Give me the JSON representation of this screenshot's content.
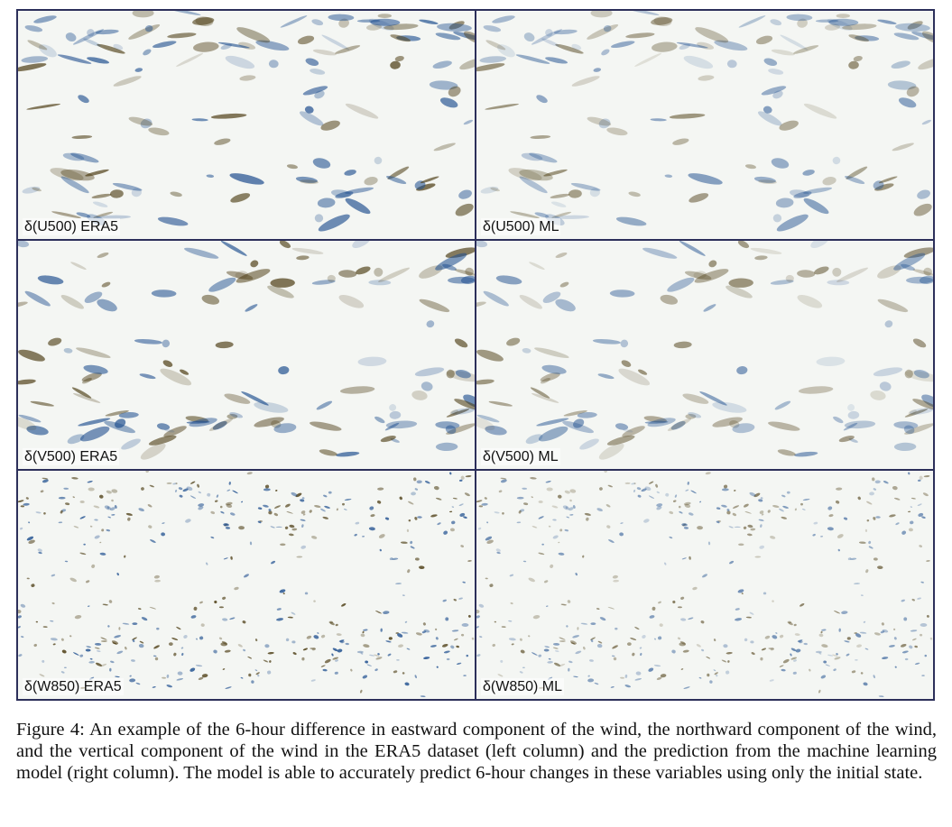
{
  "figure": {
    "panels": [
      {
        "label": "δ(U500) ERA5",
        "variable": "U500",
        "source": "ERA5"
      },
      {
        "label": "δ(U500) ML",
        "variable": "U500",
        "source": "ML"
      },
      {
        "label": "δ(V500) ERA5",
        "variable": "V500",
        "source": "ERA5"
      },
      {
        "label": "δ(V500) ML",
        "variable": "V500",
        "source": "ML"
      },
      {
        "label": "δ(W850) ERA5",
        "variable": "W850",
        "source": "ERA5"
      },
      {
        "label": "δ(W850) ML",
        "variable": "W850",
        "source": "ML"
      }
    ],
    "colors": {
      "border": "#2c2f5a",
      "positive": "#4a3a10",
      "negative": "#1f4f8f",
      "neutral": "#f4f6f3"
    },
    "caption": "Figure 4: An example of the 6-hour difference in eastward component of the wind, the northward component of the wind, and the vertical component of the wind in the ERA5 dataset (left column) and the prediction from the machine learning model (right column). The model is able to accurately predict 6-hour changes in these variables using only the initial state."
  }
}
